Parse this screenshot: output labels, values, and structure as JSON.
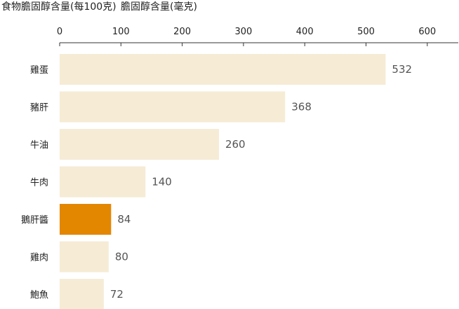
{
  "chart_data": {
    "type": "bar",
    "orientation": "horizontal",
    "title": "食物膽固醇含量(每100克)",
    "xlabel": "膽固醇含量(毫克)",
    "ylabel": "",
    "categories": [
      "雞蛋",
      "豬肝",
      "牛油",
      "牛肉",
      "鵝肝醬",
      "雞肉",
      "鮑魚"
    ],
    "values": [
      532,
      368,
      260,
      140,
      84,
      80,
      72
    ],
    "highlight": "鵝肝醬",
    "xlim": [
      0,
      650
    ],
    "xticks": [
      0,
      100,
      200,
      300,
      400,
      500,
      600
    ],
    "axis_position": "top",
    "grid": false,
    "colors": {
      "bar": "#f6ebd5",
      "highlight_bar": "#e38600",
      "highlight_label": "#d58a14",
      "value_label": "#555555",
      "axis": "#333333"
    }
  }
}
